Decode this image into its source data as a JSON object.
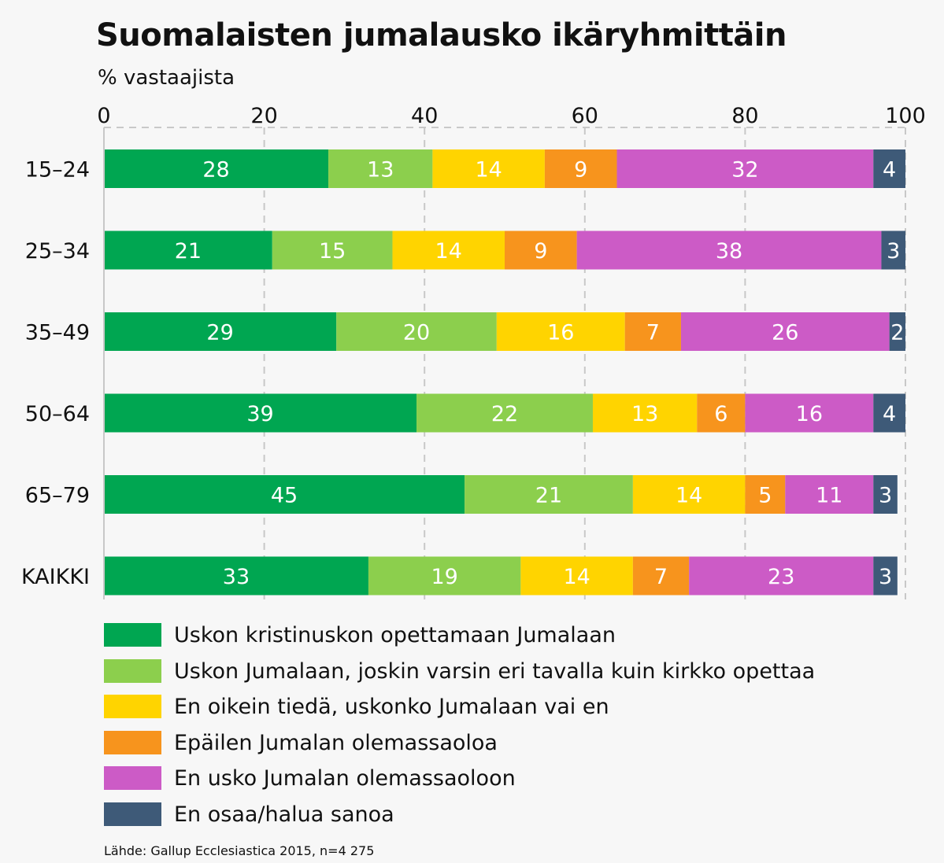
{
  "title": "Suomalaisten jumalausko ikäryhmittäin",
  "subtitle": "% vastaajista",
  "source": "Lähde: Gallup Ecclesiastica 2015, n=4 275",
  "chart_data": {
    "type": "bar",
    "orientation": "horizontal",
    "stacked": true,
    "title": "Suomalaisten jumalausko ikäryhmittäin",
    "subtitle": "% vastaajista",
    "xlim": [
      0,
      100
    ],
    "xticks": [
      0,
      20,
      40,
      60,
      80,
      100
    ],
    "grid": true,
    "legend_position": "bottom",
    "categories": [
      "15–24",
      "25–34",
      "35–49",
      "50–64",
      "65–79",
      "KAIKKI"
    ],
    "series": [
      {
        "name": "Uskon kristinuskon opettamaan Jumalaan",
        "color": "#00a651",
        "label_color": "#ffffff",
        "values": [
          28,
          21,
          29,
          39,
          45,
          33
        ]
      },
      {
        "name": "Uskon Jumalaan, joskin varsin eri tavalla kuin kirkko opettaa",
        "color": "#8ccf4d",
        "label_color": "#ffffff",
        "values": [
          13,
          15,
          20,
          22,
          21,
          19
        ]
      },
      {
        "name": "En oikein tiedä, uskonko Jumalaan vai en",
        "color": "#ffd400",
        "label_color": "#ffffff",
        "values": [
          14,
          14,
          16,
          13,
          14,
          14
        ]
      },
      {
        "name": "Epäilen Jumalan olemassaoloa",
        "color": "#f7941d",
        "label_color": "#ffffff",
        "values": [
          9,
          9,
          7,
          6,
          5,
          7
        ]
      },
      {
        "name": "En usko Jumalan olemassaoloon",
        "color": "#cc5bc6",
        "label_color": "#ffffff",
        "values": [
          32,
          38,
          26,
          16,
          11,
          23
        ]
      },
      {
        "name": "En osaa/halua sanoa",
        "color": "#3e5a78",
        "label_color": "#ffffff",
        "values": [
          4,
          3,
          2,
          4,
          3,
          3
        ]
      }
    ]
  }
}
